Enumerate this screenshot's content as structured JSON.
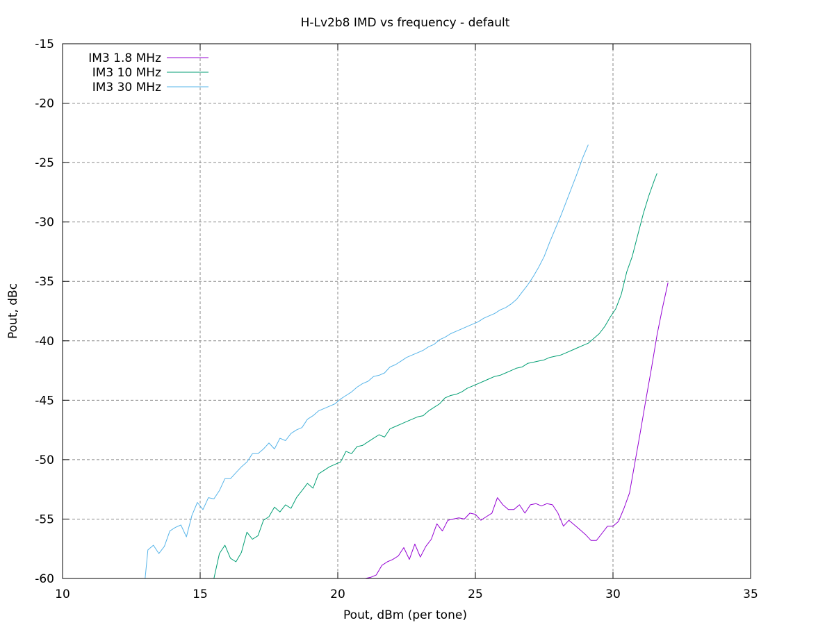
{
  "chart_data": {
    "type": "line",
    "title": "H-Lv2b8 IMD vs frequency - default",
    "xlabel": "Pout, dBm (per tone)",
    "ylabel": "Pout, dBc",
    "xlim": [
      10,
      35
    ],
    "ylim": [
      -60,
      -15
    ],
    "xticks": [
      "10",
      "15",
      "20",
      "25",
      "30",
      "35"
    ],
    "yticks": [
      "-60",
      "-55",
      "-50",
      "-45",
      "-40",
      "-35",
      "-30",
      "-25",
      "-20",
      "-15"
    ],
    "grid": true,
    "legend_position": "top-left",
    "series": [
      {
        "name": "IM3 1.8 MHz",
        "color": "#9400d3",
        "points": [
          [
            21.0,
            -60.0
          ],
          [
            21.2,
            -59.9
          ],
          [
            21.4,
            -59.7
          ],
          [
            21.6,
            -58.9
          ],
          [
            21.8,
            -58.6
          ],
          [
            22.0,
            -58.4
          ],
          [
            22.2,
            -58.1
          ],
          [
            22.4,
            -57.4
          ],
          [
            22.6,
            -58.4
          ],
          [
            22.8,
            -57.1
          ],
          [
            23.0,
            -58.2
          ],
          [
            23.2,
            -57.3
          ],
          [
            23.4,
            -56.7
          ],
          [
            23.6,
            -55.4
          ],
          [
            23.8,
            -56.0
          ],
          [
            24.0,
            -55.1
          ],
          [
            24.2,
            -55.0
          ],
          [
            24.4,
            -54.9
          ],
          [
            24.6,
            -55.0
          ],
          [
            24.8,
            -54.5
          ],
          [
            25.0,
            -54.6
          ],
          [
            25.2,
            -55.1
          ],
          [
            25.4,
            -54.8
          ],
          [
            25.6,
            -54.5
          ],
          [
            25.8,
            -53.2
          ],
          [
            26.0,
            -53.8
          ],
          [
            26.2,
            -54.2
          ],
          [
            26.4,
            -54.2
          ],
          [
            26.6,
            -53.8
          ],
          [
            26.8,
            -54.5
          ],
          [
            27.0,
            -53.8
          ],
          [
            27.2,
            -53.7
          ],
          [
            27.4,
            -53.9
          ],
          [
            27.6,
            -53.7
          ],
          [
            27.8,
            -53.8
          ],
          [
            28.0,
            -54.5
          ],
          [
            28.2,
            -55.6
          ],
          [
            28.4,
            -55.1
          ],
          [
            28.6,
            -55.5
          ],
          [
            28.8,
            -55.9
          ],
          [
            29.0,
            -56.3
          ],
          [
            29.2,
            -56.8
          ],
          [
            29.4,
            -56.8
          ],
          [
            29.6,
            -56.2
          ],
          [
            29.8,
            -55.6
          ],
          [
            30.0,
            -55.6
          ],
          [
            30.2,
            -55.2
          ],
          [
            30.4,
            -54.1
          ],
          [
            30.6,
            -52.8
          ],
          [
            30.8,
            -50.2
          ],
          [
            31.0,
            -47.6
          ],
          [
            31.2,
            -44.9
          ],
          [
            31.4,
            -42.3
          ],
          [
            31.6,
            -39.5
          ],
          [
            31.8,
            -37.2
          ],
          [
            32.0,
            -35.1
          ]
        ]
      },
      {
        "name": "IM3 10 MHz",
        "color": "#009e73",
        "points": [
          [
            15.5,
            -60.0
          ],
          [
            15.7,
            -57.9
          ],
          [
            15.9,
            -57.2
          ],
          [
            16.1,
            -58.3
          ],
          [
            16.3,
            -58.6
          ],
          [
            16.5,
            -57.8
          ],
          [
            16.7,
            -56.1
          ],
          [
            16.9,
            -56.7
          ],
          [
            17.1,
            -56.4
          ],
          [
            17.3,
            -55.1
          ],
          [
            17.5,
            -54.8
          ],
          [
            17.7,
            -54.0
          ],
          [
            17.9,
            -54.4
          ],
          [
            18.1,
            -53.8
          ],
          [
            18.3,
            -54.1
          ],
          [
            18.5,
            -53.2
          ],
          [
            18.7,
            -52.6
          ],
          [
            18.9,
            -52.0
          ],
          [
            19.1,
            -52.4
          ],
          [
            19.3,
            -51.2
          ],
          [
            19.5,
            -50.9
          ],
          [
            19.7,
            -50.6
          ],
          [
            19.9,
            -50.4
          ],
          [
            20.1,
            -50.2
          ],
          [
            20.3,
            -49.3
          ],
          [
            20.5,
            -49.5
          ],
          [
            20.7,
            -48.9
          ],
          [
            20.9,
            -48.8
          ],
          [
            21.1,
            -48.5
          ],
          [
            21.3,
            -48.2
          ],
          [
            21.5,
            -47.9
          ],
          [
            21.7,
            -48.1
          ],
          [
            21.9,
            -47.4
          ],
          [
            22.1,
            -47.2
          ],
          [
            22.3,
            -47.0
          ],
          [
            22.5,
            -46.8
          ],
          [
            22.7,
            -46.6
          ],
          [
            22.9,
            -46.4
          ],
          [
            23.1,
            -46.3
          ],
          [
            23.3,
            -45.9
          ],
          [
            23.5,
            -45.6
          ],
          [
            23.7,
            -45.3
          ],
          [
            23.9,
            -44.8
          ],
          [
            24.1,
            -44.6
          ],
          [
            24.3,
            -44.5
          ],
          [
            24.5,
            -44.3
          ],
          [
            24.7,
            -44.0
          ],
          [
            24.9,
            -43.8
          ],
          [
            25.1,
            -43.6
          ],
          [
            25.3,
            -43.4
          ],
          [
            25.5,
            -43.2
          ],
          [
            25.7,
            -43.0
          ],
          [
            25.9,
            -42.9
          ],
          [
            26.1,
            -42.7
          ],
          [
            26.3,
            -42.5
          ],
          [
            26.5,
            -42.3
          ],
          [
            26.7,
            -42.2
          ],
          [
            26.9,
            -41.9
          ],
          [
            27.1,
            -41.8
          ],
          [
            27.3,
            -41.7
          ],
          [
            27.5,
            -41.6
          ],
          [
            27.7,
            -41.4
          ],
          [
            27.9,
            -41.3
          ],
          [
            28.1,
            -41.2
          ],
          [
            28.3,
            -41.0
          ],
          [
            28.5,
            -40.8
          ],
          [
            28.7,
            -40.6
          ],
          [
            28.9,
            -40.4
          ],
          [
            29.1,
            -40.2
          ],
          [
            29.3,
            -39.8
          ],
          [
            29.5,
            -39.4
          ],
          [
            29.7,
            -38.8
          ],
          [
            29.9,
            -38.0
          ],
          [
            30.1,
            -37.3
          ],
          [
            30.3,
            -36.1
          ],
          [
            30.5,
            -34.2
          ],
          [
            30.7,
            -32.9
          ],
          [
            30.9,
            -31.1
          ],
          [
            31.1,
            -29.3
          ],
          [
            31.3,
            -27.8
          ],
          [
            31.5,
            -26.5
          ],
          [
            31.6,
            -25.9
          ]
        ]
      },
      {
        "name": "IM3 30 MHz",
        "color": "#56b4e9",
        "points": [
          [
            13.0,
            -60.0
          ],
          [
            13.1,
            -57.6
          ],
          [
            13.3,
            -57.2
          ],
          [
            13.5,
            -57.9
          ],
          [
            13.7,
            -57.3
          ],
          [
            13.9,
            -56.0
          ],
          [
            14.1,
            -55.7
          ],
          [
            14.3,
            -55.5
          ],
          [
            14.5,
            -56.5
          ],
          [
            14.7,
            -54.7
          ],
          [
            14.9,
            -53.6
          ],
          [
            15.1,
            -54.2
          ],
          [
            15.3,
            -53.2
          ],
          [
            15.5,
            -53.3
          ],
          [
            15.7,
            -52.6
          ],
          [
            15.9,
            -51.6
          ],
          [
            16.1,
            -51.6
          ],
          [
            16.3,
            -51.1
          ],
          [
            16.5,
            -50.6
          ],
          [
            16.7,
            -50.2
          ],
          [
            16.9,
            -49.5
          ],
          [
            17.1,
            -49.5
          ],
          [
            17.3,
            -49.1
          ],
          [
            17.5,
            -48.6
          ],
          [
            17.7,
            -49.1
          ],
          [
            17.9,
            -48.2
          ],
          [
            18.1,
            -48.4
          ],
          [
            18.3,
            -47.8
          ],
          [
            18.5,
            -47.5
          ],
          [
            18.7,
            -47.3
          ],
          [
            18.9,
            -46.6
          ],
          [
            19.1,
            -46.3
          ],
          [
            19.3,
            -45.9
          ],
          [
            19.5,
            -45.7
          ],
          [
            19.7,
            -45.5
          ],
          [
            19.9,
            -45.3
          ],
          [
            20.1,
            -44.9
          ],
          [
            20.3,
            -44.6
          ],
          [
            20.5,
            -44.3
          ],
          [
            20.7,
            -43.9
          ],
          [
            20.9,
            -43.6
          ],
          [
            21.1,
            -43.4
          ],
          [
            21.3,
            -43.0
          ],
          [
            21.5,
            -42.9
          ],
          [
            21.7,
            -42.7
          ],
          [
            21.9,
            -42.2
          ],
          [
            22.1,
            -42.0
          ],
          [
            22.3,
            -41.7
          ],
          [
            22.5,
            -41.4
          ],
          [
            22.7,
            -41.2
          ],
          [
            22.9,
            -41.0
          ],
          [
            23.1,
            -40.8
          ],
          [
            23.3,
            -40.5
          ],
          [
            23.5,
            -40.3
          ],
          [
            23.7,
            -39.9
          ],
          [
            23.9,
            -39.7
          ],
          [
            24.1,
            -39.4
          ],
          [
            24.3,
            -39.2
          ],
          [
            24.5,
            -39.0
          ],
          [
            24.7,
            -38.8
          ],
          [
            24.9,
            -38.6
          ],
          [
            25.1,
            -38.4
          ],
          [
            25.3,
            -38.1
          ],
          [
            25.5,
            -37.9
          ],
          [
            25.7,
            -37.7
          ],
          [
            25.9,
            -37.4
          ],
          [
            26.1,
            -37.2
          ],
          [
            26.3,
            -36.9
          ],
          [
            26.5,
            -36.5
          ],
          [
            26.7,
            -35.9
          ],
          [
            26.9,
            -35.3
          ],
          [
            27.1,
            -34.6
          ],
          [
            27.3,
            -33.8
          ],
          [
            27.5,
            -32.9
          ],
          [
            27.7,
            -31.7
          ],
          [
            27.9,
            -30.6
          ],
          [
            28.1,
            -29.5
          ],
          [
            28.3,
            -28.3
          ],
          [
            28.5,
            -27.1
          ],
          [
            28.7,
            -25.9
          ],
          [
            28.9,
            -24.6
          ],
          [
            29.1,
            -23.5
          ]
        ]
      }
    ]
  }
}
